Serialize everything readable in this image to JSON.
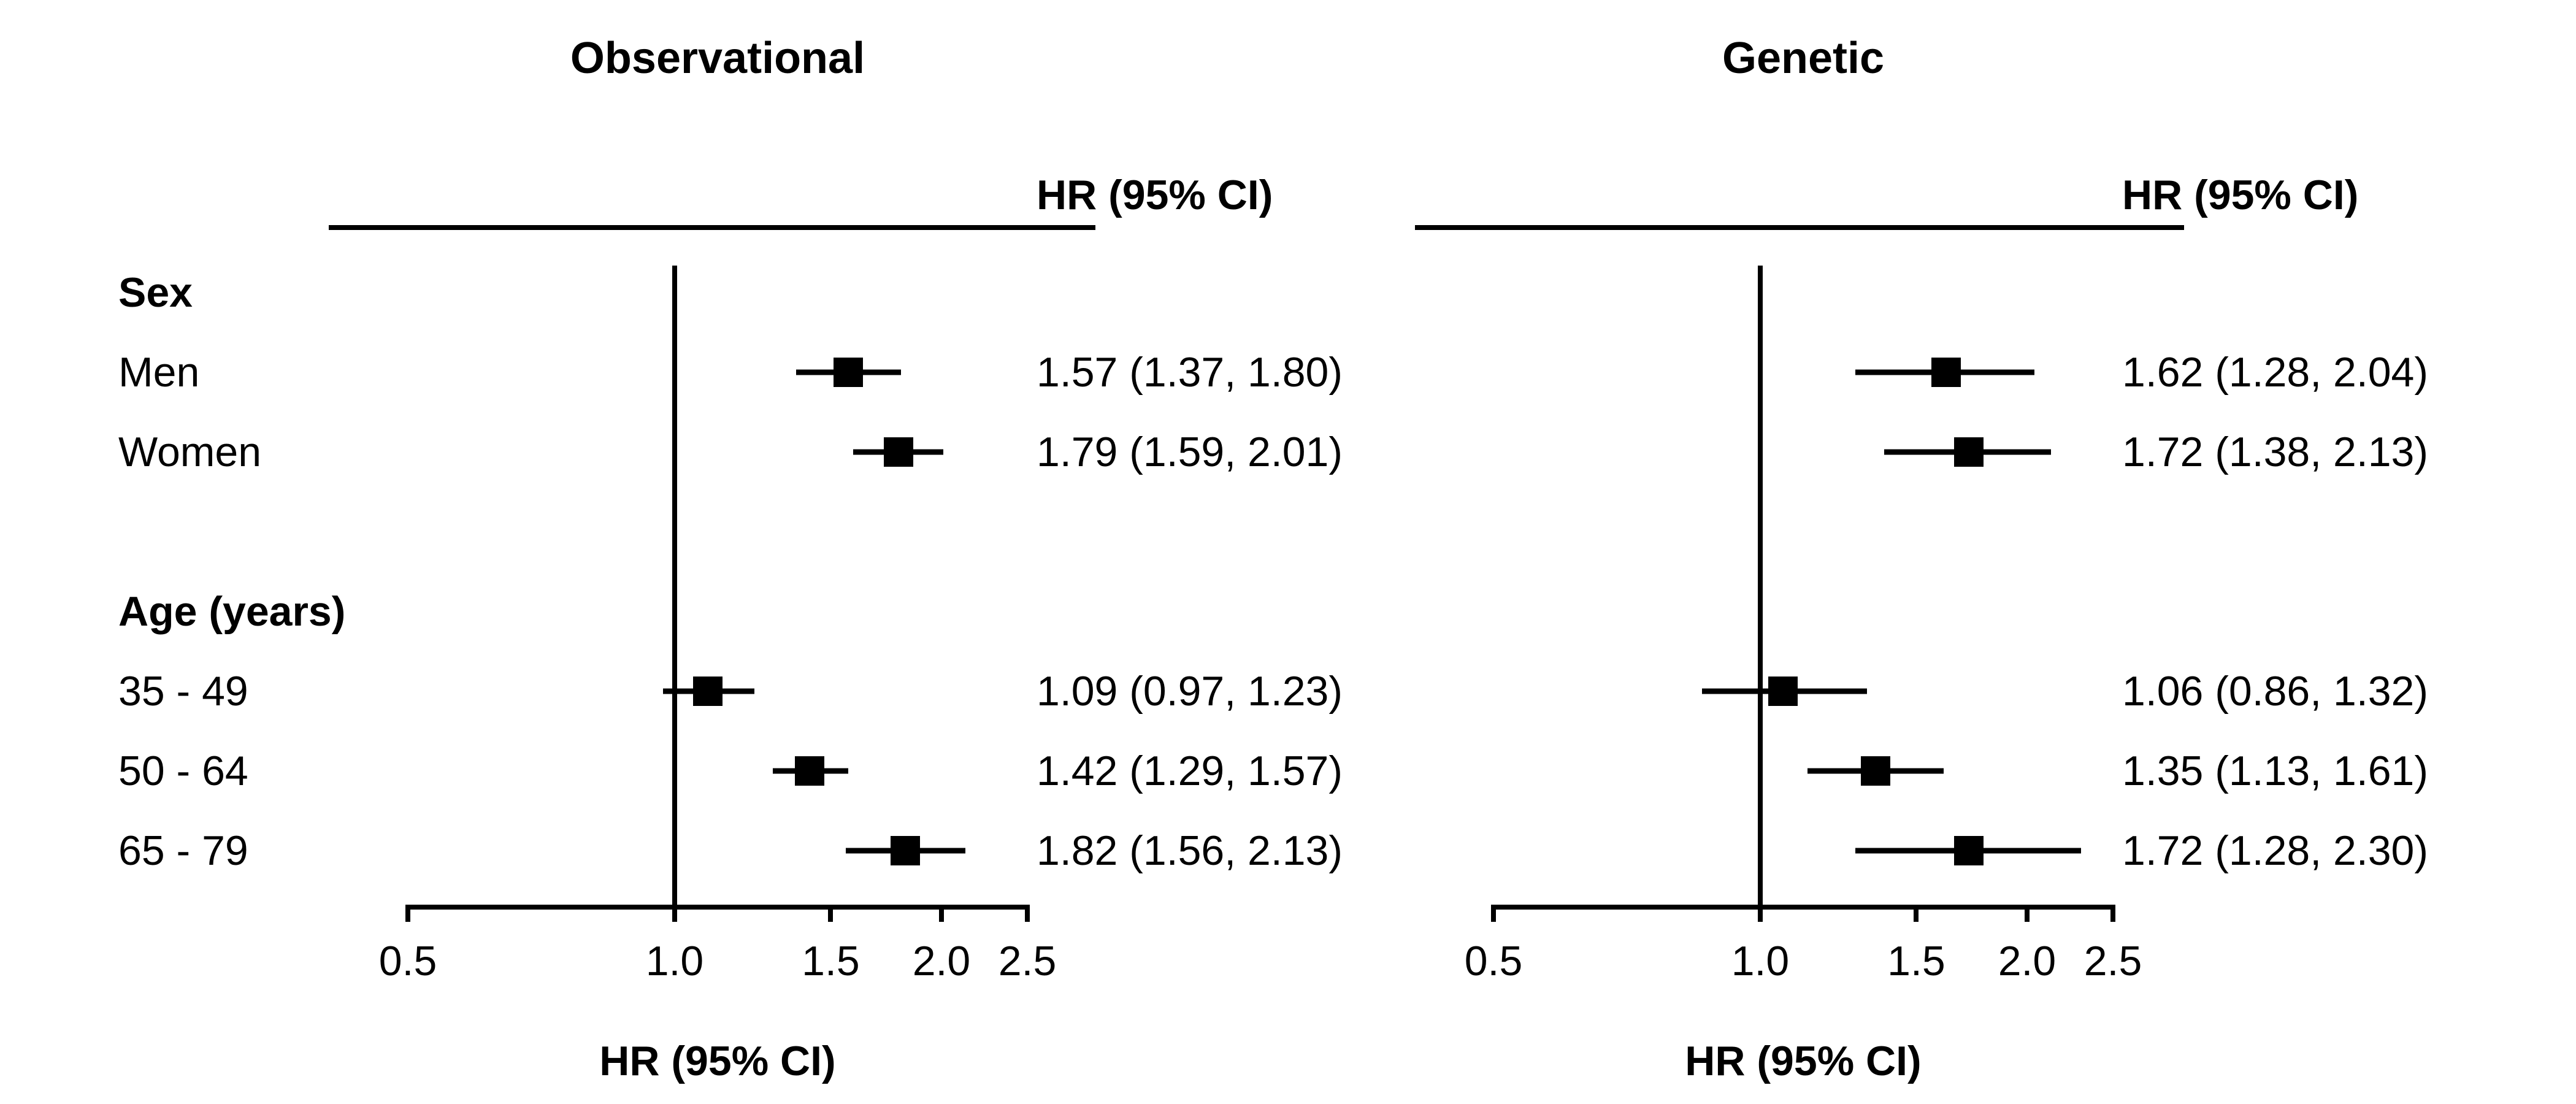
{
  "figure": {
    "background": "#ffffff",
    "ink_color": "#000000"
  },
  "rows": [
    {
      "label": "Sex",
      "bold": true
    },
    {
      "label": "Men",
      "bold": false
    },
    {
      "label": "Women",
      "bold": false
    },
    {
      "label": "Age (years)",
      "bold": true
    },
    {
      "label": "35 - 49",
      "bold": false
    },
    {
      "label": "50 - 64",
      "bold": false
    },
    {
      "label": "65 - 79",
      "bold": false
    }
  ],
  "chart_data": [
    {
      "type": "forest",
      "title": "Observational",
      "column_header": "HR (95% CI)",
      "xlabel": "HR (95% CI)",
      "x_scale": "log",
      "xlim": [
        0.5,
        2.5
      ],
      "reference_line": 1.0,
      "x_ticks": [
        "0.5",
        "1.0",
        "1.5",
        "2.0",
        "2.5"
      ],
      "x_tick_values": [
        0.5,
        1.0,
        1.5,
        2.0,
        2.5
      ],
      "grid": false,
      "marker": "filled-square",
      "estimates": [
        {
          "row": 1,
          "group": "Sex",
          "label": "Men",
          "hr": 1.57,
          "lo": 1.37,
          "hi": 1.8,
          "text": "1.57 (1.37, 1.80)"
        },
        {
          "row": 2,
          "group": "Sex",
          "label": "Women",
          "hr": 1.79,
          "lo": 1.59,
          "hi": 2.01,
          "text": "1.79 (1.59, 2.01)"
        },
        {
          "row": 4,
          "group": "Age (years)",
          "label": "35 - 49",
          "hr": 1.09,
          "lo": 0.97,
          "hi": 1.23,
          "text": "1.09 (0.97, 1.23)"
        },
        {
          "row": 5,
          "group": "Age (years)",
          "label": "50 - 64",
          "hr": 1.42,
          "lo": 1.29,
          "hi": 1.57,
          "text": "1.42 (1.29, 1.57)"
        },
        {
          "row": 6,
          "group": "Age (years)",
          "label": "65 - 79",
          "hr": 1.82,
          "lo": 1.56,
          "hi": 2.13,
          "text": "1.82 (1.56, 2.13)"
        }
      ]
    },
    {
      "type": "forest",
      "title": "Genetic",
      "column_header": "HR (95% CI)",
      "xlabel": "HR (95% CI)",
      "x_scale": "log",
      "xlim": [
        0.5,
        2.5
      ],
      "reference_line": 1.0,
      "x_ticks": [
        "0.5",
        "1.0",
        "1.5",
        "2.0",
        "2.5"
      ],
      "x_tick_values": [
        0.5,
        1.0,
        1.5,
        2.0,
        2.5
      ],
      "grid": false,
      "marker": "filled-square",
      "estimates": [
        {
          "row": 1,
          "group": "Sex",
          "label": "Men",
          "hr": 1.62,
          "lo": 1.28,
          "hi": 2.04,
          "text": "1.62 (1.28, 2.04)"
        },
        {
          "row": 2,
          "group": "Sex",
          "label": "Women",
          "hr": 1.72,
          "lo": 1.38,
          "hi": 2.13,
          "text": "1.72 (1.38, 2.13)"
        },
        {
          "row": 4,
          "group": "Age (years)",
          "label": "35 - 49",
          "hr": 1.06,
          "lo": 0.86,
          "hi": 1.32,
          "text": "1.06 (0.86, 1.32)"
        },
        {
          "row": 5,
          "group": "Age (years)",
          "label": "50 - 64",
          "hr": 1.35,
          "lo": 1.13,
          "hi": 1.61,
          "text": "1.35 (1.13, 1.61)"
        },
        {
          "row": 6,
          "group": "Age (years)",
          "label": "65 - 79",
          "hr": 1.72,
          "lo": 1.28,
          "hi": 2.3,
          "text": "1.72 (1.28, 2.30)"
        }
      ]
    }
  ]
}
